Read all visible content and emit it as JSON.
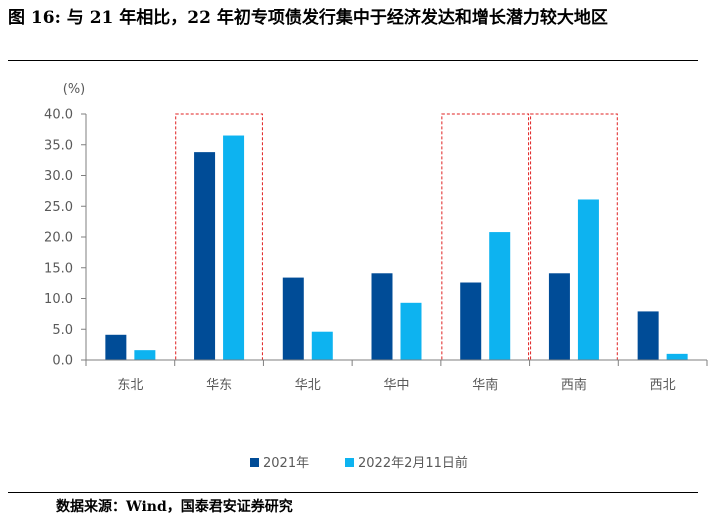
{
  "figure": {
    "title": "图 16: 与 21 年相比，22 年初专项债发行集中于经济发达和增长潜力较大地区",
    "source": "数据来源：Wind，国泰君安证券研究"
  },
  "chart_data": {
    "type": "bar",
    "unit_label": "(%)",
    "categories": [
      "东北",
      "华东",
      "华北",
      "华中",
      "华南",
      "西南",
      "西北"
    ],
    "series": [
      {
        "name": "2021年",
        "color": "#004C97",
        "values": [
          4.1,
          33.8,
          13.4,
          14.1,
          12.6,
          14.1,
          7.9
        ]
      },
      {
        "name": "2022年2月11日前",
        "color": "#0DB3F0",
        "values": [
          1.6,
          36.5,
          4.6,
          9.3,
          20.8,
          26.1,
          1.0
        ]
      }
    ],
    "ylim": [
      0,
      40
    ],
    "yticks": [
      "0.0",
      "5.0",
      "10.0",
      "15.0",
      "20.0",
      "25.0",
      "30.0",
      "35.0",
      "40.0"
    ],
    "highlighted_categories": [
      "华东",
      "华南",
      "西南"
    ],
    "highlight_color": "#E02020",
    "grid": false,
    "legend_position": "bottom"
  }
}
